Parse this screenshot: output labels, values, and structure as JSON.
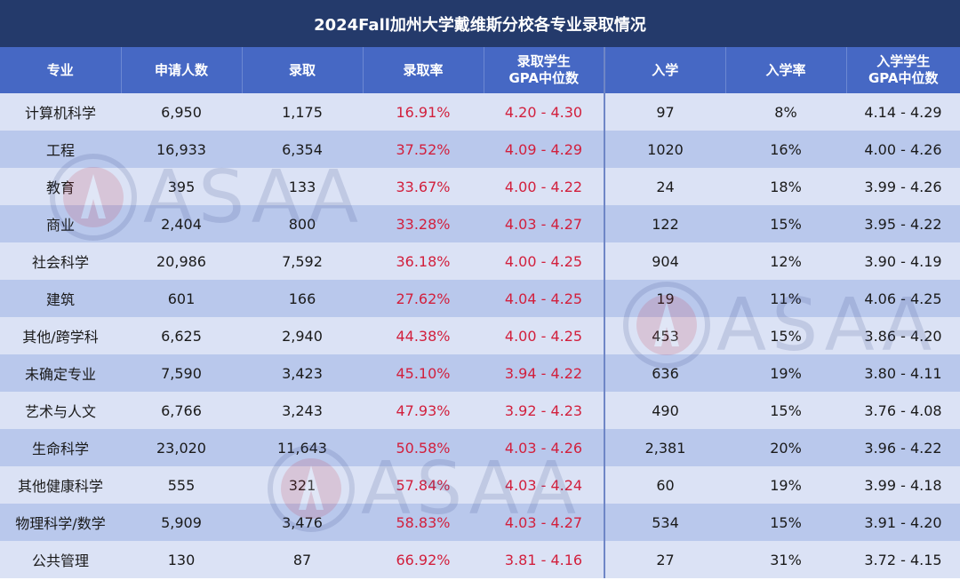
{
  "title": "2024Fall加州大学戴维斯分校各专业录取情况",
  "watermark": "ASAA",
  "colors": {
    "title_bg": "#243a6b",
    "header_bg": "#4668c4",
    "row_light": "#dbe2f5",
    "row_dark": "#b9c8ec",
    "highlight_red": "#d21f3c"
  },
  "headers": {
    "major": "专业",
    "applicants": "申请人数",
    "admitted": "录取",
    "admit_rate": "录取率",
    "admit_gpa_line1": "录取学生",
    "admit_gpa_line2": "GPA中位数",
    "enrolled": "入学",
    "enroll_rate": "入学率",
    "enroll_gpa_line1": "入学学生",
    "enroll_gpa_line2": "GPA中位数"
  },
  "rows": [
    {
      "major": "计算机科学",
      "applicants": "6,950",
      "admitted": "1,175",
      "admit_rate": "16.91%",
      "admit_gpa": "4.20 - 4.30",
      "enrolled": "97",
      "enroll_rate": "8%",
      "enroll_gpa": "4.14 - 4.29"
    },
    {
      "major": "工程",
      "applicants": "16,933",
      "admitted": "6,354",
      "admit_rate": "37.52%",
      "admit_gpa": "4.09 - 4.29",
      "enrolled": "1020",
      "enroll_rate": "16%",
      "enroll_gpa": "4.00 - 4.26"
    },
    {
      "major": "教育",
      "applicants": "395",
      "admitted": "133",
      "admit_rate": "33.67%",
      "admit_gpa": "4.00 - 4.22",
      "enrolled": "24",
      "enroll_rate": "18%",
      "enroll_gpa": "3.99 - 4.26"
    },
    {
      "major": "商业",
      "applicants": "2,404",
      "admitted": "800",
      "admit_rate": "33.28%",
      "admit_gpa": "4.03 - 4.27",
      "enrolled": "122",
      "enroll_rate": "15%",
      "enroll_gpa": "3.95 - 4.22"
    },
    {
      "major": "社会科学",
      "applicants": "20,986",
      "admitted": "7,592",
      "admit_rate": "36.18%",
      "admit_gpa": "4.00 - 4.25",
      "enrolled": "904",
      "enroll_rate": "12%",
      "enroll_gpa": "3.90 - 4.19"
    },
    {
      "major": "建筑",
      "applicants": "601",
      "admitted": "166",
      "admit_rate": "27.62%",
      "admit_gpa": "4.04 - 4.25",
      "enrolled": "19",
      "enroll_rate": "11%",
      "enroll_gpa": "4.06 - 4.25"
    },
    {
      "major": "其他/跨学科",
      "applicants": "6,625",
      "admitted": "2,940",
      "admit_rate": "44.38%",
      "admit_gpa": "4.00 - 4.25",
      "enrolled": "453",
      "enroll_rate": "15%",
      "enroll_gpa": "3.86 - 4.20"
    },
    {
      "major": "未确定专业",
      "applicants": "7,590",
      "admitted": "3,423",
      "admit_rate": "45.10%",
      "admit_gpa": "3.94 - 4.22",
      "enrolled": "636",
      "enroll_rate": "19%",
      "enroll_gpa": "3.80 - 4.11"
    },
    {
      "major": "艺术与人文",
      "applicants": "6,766",
      "admitted": "3,243",
      "admit_rate": "47.93%",
      "admit_gpa": "3.92 - 4.23",
      "enrolled": "490",
      "enroll_rate": "15%",
      "enroll_gpa": "3.76 - 4.08"
    },
    {
      "major": "生命科学",
      "applicants": "23,020",
      "admitted": "11,643",
      "admit_rate": "50.58%",
      "admit_gpa": "4.03 - 4.26",
      "enrolled": "2,381",
      "enroll_rate": "20%",
      "enroll_gpa": "3.96 - 4.22"
    },
    {
      "major": "其他健康科学",
      "applicants": "555",
      "admitted": "321",
      "admit_rate": "57.84%",
      "admit_gpa": "4.03 - 4.24",
      "enrolled": "60",
      "enroll_rate": "19%",
      "enroll_gpa": "3.99 - 4.18"
    },
    {
      "major": "物理科学/数学",
      "applicants": "5,909",
      "admitted": "3,476",
      "admit_rate": "58.83%",
      "admit_gpa": "4.03 - 4.27",
      "enrolled": "534",
      "enroll_rate": "15%",
      "enroll_gpa": "3.91 - 4.20"
    },
    {
      "major": "公共管理",
      "applicants": "130",
      "admitted": "87",
      "admit_rate": "66.92%",
      "admit_gpa": "3.81 - 4.16",
      "enrolled": "27",
      "enroll_rate": "31%",
      "enroll_gpa": "3.72 - 4.15"
    }
  ]
}
